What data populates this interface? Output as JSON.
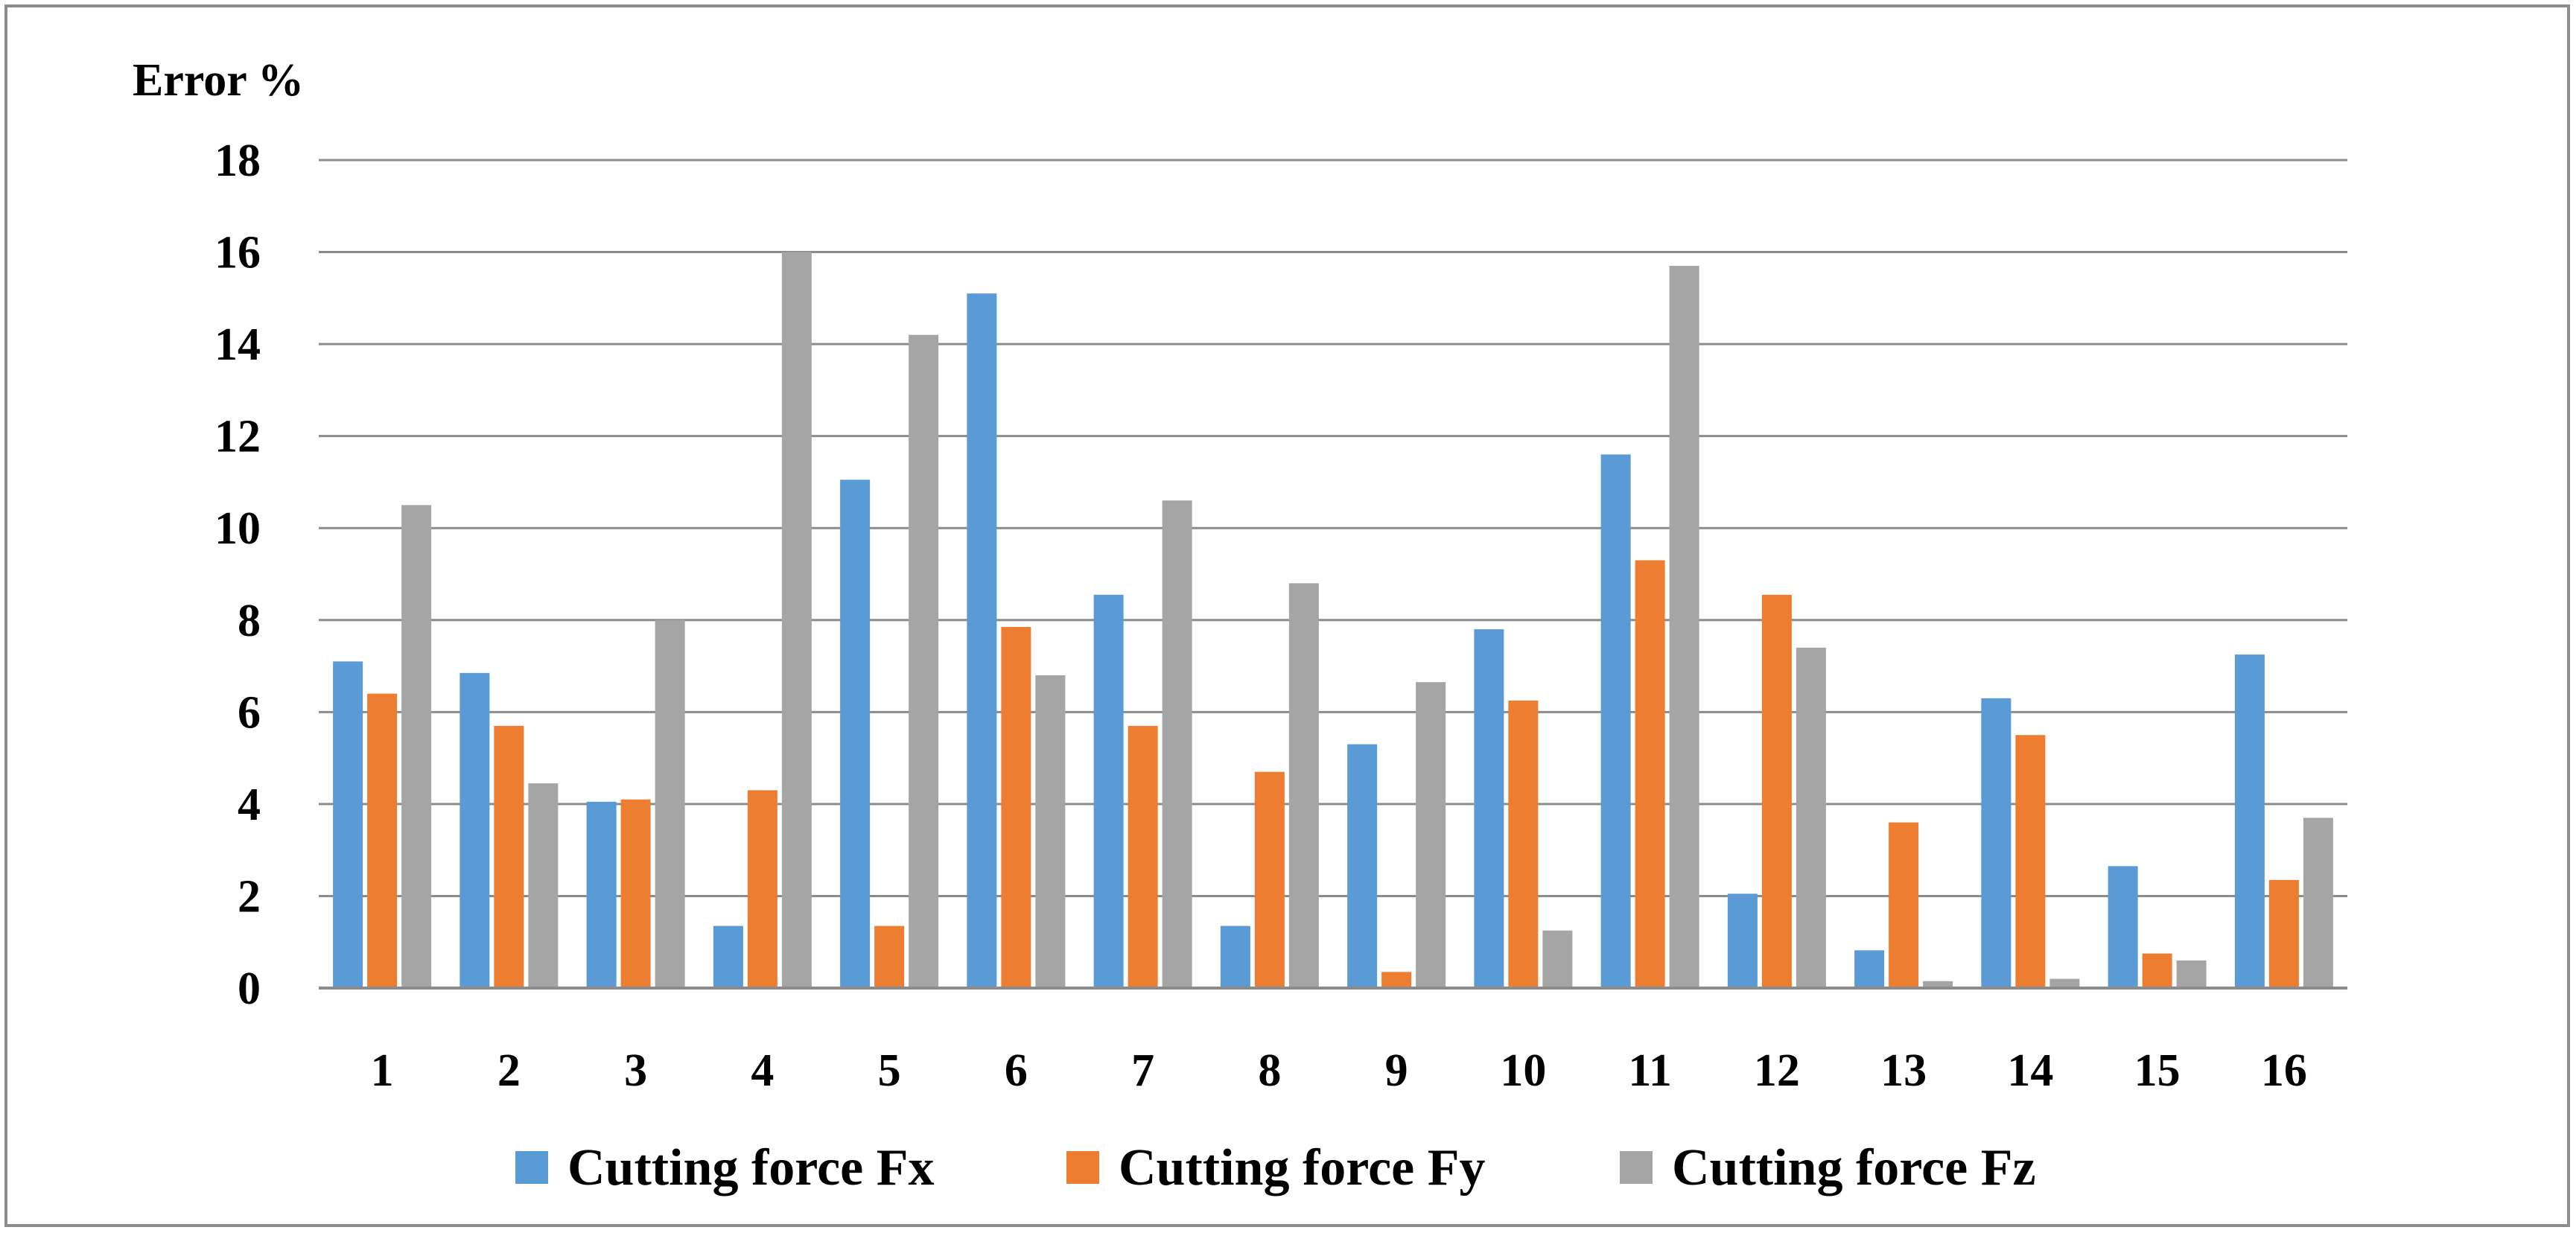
{
  "chart_data": {
    "type": "bar",
    "title": "",
    "xlabel": "",
    "ylabel": "Error %",
    "ylim": [
      0,
      18
    ],
    "yticks": [
      0,
      2,
      4,
      6,
      8,
      10,
      12,
      14,
      16,
      18
    ],
    "grid": true,
    "legend_position": "bottom",
    "categories": [
      "1",
      "2",
      "3",
      "4",
      "5",
      "6",
      "7",
      "8",
      "9",
      "10",
      "11",
      "12",
      "13",
      "14",
      "15",
      "16"
    ],
    "series": [
      {
        "name": "Cutting force Fx",
        "color": "#5b9bd5",
        "values": [
          7.1,
          6.85,
          4.05,
          1.35,
          11.05,
          15.1,
          8.55,
          1.35,
          5.3,
          7.8,
          11.6,
          2.05,
          0.82,
          6.3,
          2.65,
          7.25
        ]
      },
      {
        "name": "Cutting force Fy",
        "color": "#ed7d31",
        "values": [
          6.4,
          5.7,
          4.1,
          4.3,
          1.35,
          7.85,
          5.7,
          4.7,
          0.35,
          6.25,
          9.3,
          8.55,
          3.6,
          5.5,
          0.75,
          2.35
        ]
      },
      {
        "name": "Cutting force Fz",
        "color": "#a5a5a5",
        "values": [
          10.5,
          4.45,
          8.0,
          16.0,
          14.2,
          6.8,
          10.6,
          8.8,
          6.65,
          1.25,
          15.7,
          7.4,
          0.15,
          0.2,
          0.6,
          3.7
        ]
      }
    ]
  }
}
